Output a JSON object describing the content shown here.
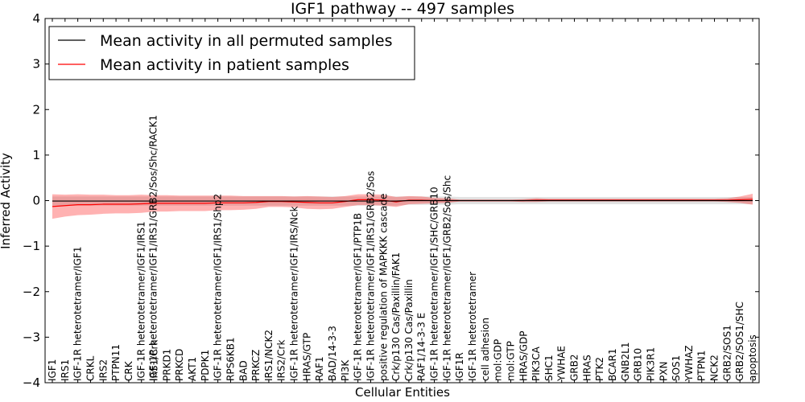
{
  "chart_data": {
    "type": "line",
    "title": "IGF1 pathway -- 497 samples",
    "xlabel": "Cellular Entities",
    "ylabel": "Inferred Activity",
    "ylim": [
      -4,
      4
    ],
    "yticks": [
      "−4",
      "−3",
      "−2",
      "−1",
      "0",
      "1",
      "2",
      "3",
      "4"
    ],
    "ytick_values": [
      -4,
      -3,
      -2,
      -1,
      0,
      1,
      2,
      3,
      4
    ],
    "legend_position": "top-left",
    "categories": [
      "IGF1",
      "IRS1",
      "IGF-1R heterotetramer/IGF1",
      "CRKL",
      "IRS2",
      "PTPN11",
      "CRK",
      "IGF-1R heterotetramer/IGF1/IRS1",
      "IRS1/Crk",
      "PRKD1",
      "PRKCD",
      "AKT1",
      "PDPK1",
      "IGF-1R heterotetramer/IGF1/IRS1/Shp2",
      "RPS6KB1",
      "BAD",
      "PRKCZ",
      "IRS1/NCK2",
      "IRS2/Crk",
      "IGF-1R heterotetramer/IGF1/IRS/Nck",
      "HRAS/GTP",
      "RAF1",
      "BAD/14-3-3",
      "PI3K",
      "IGF-1R heterotetramer/IGF1/PTP1B",
      "IGF-1R heterotetramer/IGF1/IRS1/GRB2/Sos",
      "positive regulation of MAPKKK cascade",
      "Crk/p130 Cas/Paxillin/FAK1",
      "Crk/p130 Cas/Paxillin",
      "RAF1/14-3-3 E",
      "IGF-1R heterotetramer/IGF1/SHC/GRB10",
      "IGF-1R heterotetramer/IGF1/GRB2/Sos/Shc",
      "IGF1R",
      "IGF-1R heterotetramer",
      "cell adhesion",
      "mol:GDP",
      "mol:GTP",
      "HRAS/GDP",
      "PIK3CA",
      "SHC1",
      "YWHAE",
      "GRB2",
      "HRAS",
      "PTK2",
      "BCAR1",
      "GNB2L1",
      "GRB10",
      "PIK3R1",
      "PXN",
      "SOS1",
      "YWHAZ",
      "PTPN1",
      "NCK2",
      "GRB2/SOS1",
      "GRB2/SOS1/SHC",
      "apoptosis"
    ],
    "extra_tick_labels": [
      "IGF-1R heterotetramer/IGF1/IRS1/GRB2/Sos/Shc/RACK1"
    ],
    "series": [
      {
        "name": "Mean activity in all permuted samples",
        "color": "#000000",
        "values": [
          -0.01,
          -0.01,
          -0.01,
          -0.01,
          -0.01,
          -0.01,
          -0.01,
          -0.01,
          -0.01,
          -0.01,
          -0.01,
          -0.01,
          -0.01,
          -0.01,
          -0.01,
          -0.01,
          -0.01,
          -0.01,
          -0.01,
          -0.01,
          -0.01,
          -0.01,
          -0.01,
          -0.01,
          -0.01,
          -0.01,
          -0.01,
          -0.01,
          0,
          0,
          0,
          0,
          0,
          0,
          0,
          0,
          0,
          0,
          0,
          0,
          0,
          0,
          0,
          0,
          0,
          0,
          0,
          0,
          0,
          0,
          0,
          0,
          0,
          0,
          0,
          0
        ],
        "band": [
          0.1,
          0.1,
          0.1,
          0.1,
          0.1,
          0.1,
          0.1,
          0.1,
          0.1,
          0.1,
          0.1,
          0.1,
          0.1,
          0.1,
          0.1,
          0.1,
          0.1,
          0.1,
          0.1,
          0.1,
          0.1,
          0.1,
          0.1,
          0.1,
          0.1,
          0.1,
          0.1,
          0.1,
          0.09,
          0.09,
          0.09,
          0.09,
          0.08,
          0.08,
          0.08,
          0.08,
          0.08,
          0.08,
          0.08,
          0.08,
          0.08,
          0.08,
          0.08,
          0.08,
          0.08,
          0.08,
          0.08,
          0.08,
          0.08,
          0.08,
          0.08,
          0.08,
          0.08,
          0.08,
          0.08,
          0.08
        ]
      },
      {
        "name": "Mean activity in patient samples",
        "color": "#ff0000",
        "values": [
          -0.13,
          -0.11,
          -0.09,
          -0.09,
          -0.08,
          -0.08,
          -0.08,
          -0.07,
          -0.06,
          -0.06,
          -0.06,
          -0.06,
          -0.06,
          -0.05,
          -0.05,
          -0.05,
          -0.04,
          -0.02,
          -0.02,
          -0.03,
          -0.04,
          -0.05,
          -0.05,
          -0.02,
          0.02,
          0.02,
          0.01,
          -0.03,
          0.01,
          0.01,
          0,
          0,
          0,
          0,
          0,
          0,
          0,
          0,
          0.01,
          0.01,
          0.01,
          0.01,
          0.01,
          0.01,
          0.01,
          0.01,
          0.01,
          0.01,
          0.01,
          0.01,
          0.01,
          0.01,
          0.01,
          0.01,
          0.02,
          0.03
        ],
        "band": [
          0.27,
          0.24,
          0.23,
          0.22,
          0.21,
          0.2,
          0.2,
          0.2,
          0.18,
          0.18,
          0.17,
          0.17,
          0.17,
          0.16,
          0.16,
          0.15,
          0.14,
          0.12,
          0.12,
          0.12,
          0.14,
          0.14,
          0.13,
          0.12,
          0.12,
          0.12,
          0.12,
          0.11,
          0.09,
          0.08,
          0.06,
          0.05,
          0.02,
          0.02,
          0.02,
          0.02,
          0.02,
          0.03,
          0.04,
          0.03,
          0.03,
          0.03,
          0.03,
          0.03,
          0.03,
          0.03,
          0.03,
          0.03,
          0.03,
          0.03,
          0.03,
          0.03,
          0.03,
          0.04,
          0.07,
          0.12
        ]
      }
    ]
  }
}
